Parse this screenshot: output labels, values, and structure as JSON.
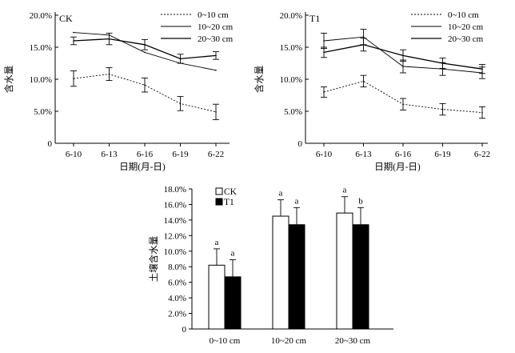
{
  "chart_data": [
    {
      "type": "line",
      "panel_label": "CK",
      "xlabel": "日期(月-日)",
      "ylabel": "含水量",
      "ylim": [
        0,
        20
      ],
      "yticks": [
        "0",
        "5.0%",
        "10.0%",
        "15.0%",
        "20.0%"
      ],
      "categories": [
        "6-10",
        "6-13",
        "6-16",
        "6-19",
        "6-22"
      ],
      "series": [
        {
          "name": "0~10 cm",
          "style": "dotted",
          "values": [
            10.1,
            10.8,
            9.1,
            6.2,
            4.9
          ],
          "errors": [
            1.2,
            1.0,
            1.1,
            1.1,
            1.2
          ]
        },
        {
          "name": "10~20 cm",
          "style": "thin",
          "values": [
            17.3,
            16.9,
            14.2,
            12.5,
            11.4
          ],
          "errors": [
            0,
            0,
            0,
            0,
            0
          ]
        },
        {
          "name": "20~30 cm",
          "style": "solid",
          "values": [
            16.0,
            16.3,
            15.4,
            13.2,
            13.7
          ],
          "errors": [
            0.6,
            0.9,
            0.8,
            0.7,
            0.6
          ]
        }
      ],
      "legend_position": "top-right"
    },
    {
      "type": "line",
      "panel_label": "T1",
      "xlabel": "日期(月-日)",
      "ylabel": "含水量",
      "ylim": [
        0,
        20
      ],
      "yticks": [
        "0",
        "5.0%",
        "10.0%",
        "15.0%",
        "20.0%"
      ],
      "categories": [
        "6-10",
        "6-13",
        "6-16",
        "6-19",
        "6-22"
      ],
      "series": [
        {
          "name": "0~10 cm",
          "style": "dotted",
          "values": [
            8.0,
            9.7,
            6.1,
            5.3,
            4.8
          ],
          "errors": [
            0.8,
            0.9,
            0.9,
            0.9,
            0.9
          ]
        },
        {
          "name": "10~20 cm",
          "style": "thin",
          "values": [
            16.0,
            16.6,
            12.0,
            11.6,
            11.0
          ],
          "errors": [
            1.2,
            1.2,
            1.0,
            1.0,
            0.9
          ]
        },
        {
          "name": "20~30 cm",
          "style": "solid",
          "values": [
            14.2,
            15.4,
            13.7,
            12.5,
            11.6
          ],
          "errors": [
            0.8,
            1.0,
            0.9,
            0.8,
            0.7
          ]
        }
      ],
      "legend_position": "top-right"
    },
    {
      "type": "bar",
      "xlabel": "",
      "ylabel": "土壤含水量",
      "ylim": [
        0,
        18
      ],
      "yticks": [
        "0",
        "2.0%",
        "4.0%",
        "6.0%",
        "8.0%",
        "10.0%",
        "12.0%",
        "14.0%",
        "16.0%",
        "18.0%"
      ],
      "categories": [
        "0~10 cm",
        "10~20 cm",
        "20~30 cm"
      ],
      "series": [
        {
          "name": "CK",
          "fill": "#ffffff",
          "values": [
            8.2,
            14.5,
            14.9
          ],
          "errors": [
            2.1,
            2.1,
            2.1
          ],
          "sig": [
            "a",
            "a",
            "a"
          ]
        },
        {
          "name": "T1",
          "fill": "#000000",
          "values": [
            6.7,
            13.4,
            13.4
          ],
          "errors": [
            2.2,
            2.2,
            2.2
          ],
          "sig": [
            "a",
            "a",
            "b"
          ]
        }
      ],
      "legend_position": "top-left"
    }
  ]
}
